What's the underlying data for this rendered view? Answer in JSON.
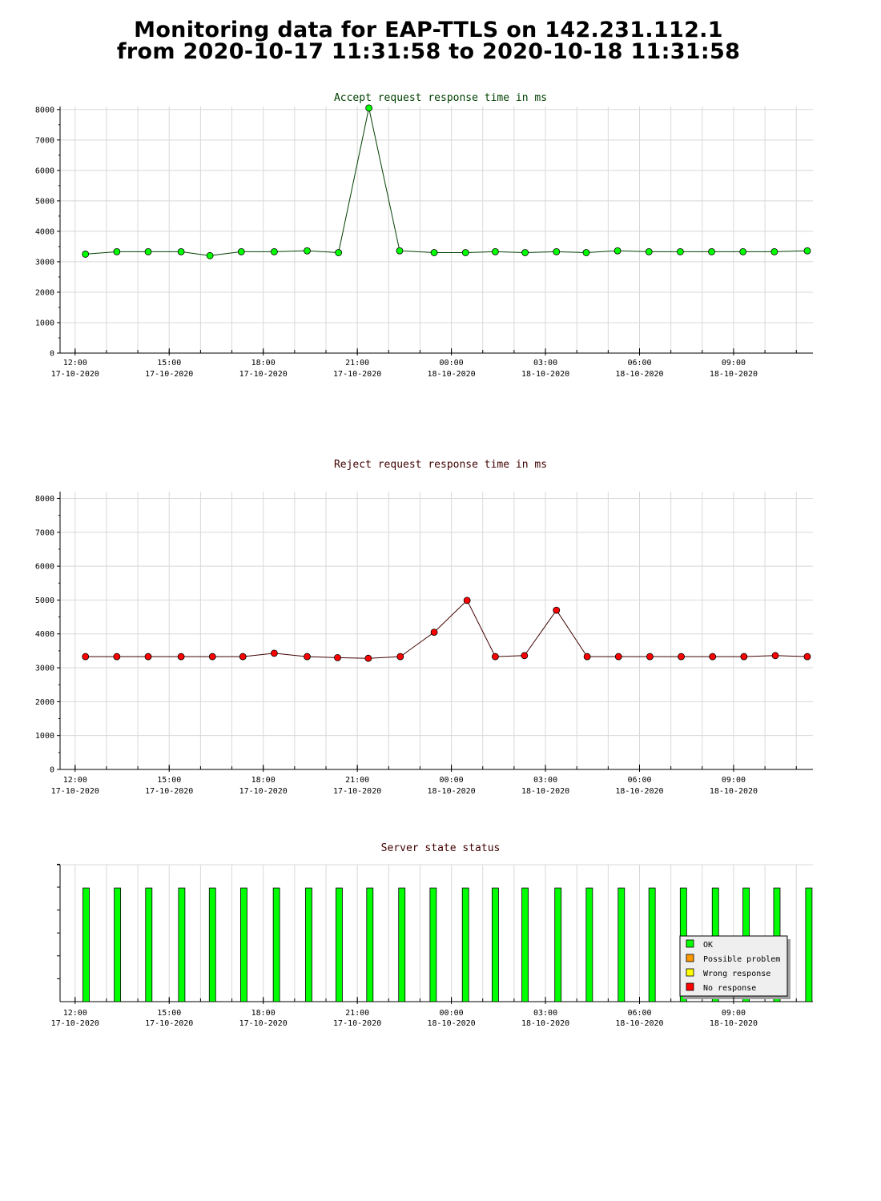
{
  "title_line1": "Monitoring data for EAP-TTLS on 142.231.112.1",
  "title_line2": "from 2020-10-17 11:31:58 to 2020-10-18 11:31:58",
  "colors": {
    "accept_line": "#004000",
    "accept_marker": "#00ff00",
    "reject_line": "#400000",
    "reject_marker": "#ff0000",
    "grid": "#d8d8d8",
    "ok": "#00ff00",
    "possible_problem": "#ff9900",
    "wrong_response": "#ffff00",
    "no_response": "#ff0000"
  },
  "chart_data": [
    {
      "type": "line",
      "title": "Accept request response time in ms",
      "ylim": [
        0,
        8000
      ],
      "yticks": [
        "0",
        "1000",
        "2000",
        "3000",
        "4000",
        "5000",
        "6000",
        "7000",
        "8000"
      ],
      "xlim": [
        11.52,
        35.53
      ],
      "x_ticks": [
        {
          "x": 12,
          "label1": "12:00",
          "label2": "17-10-2020"
        },
        {
          "x": 15,
          "label1": "15:00",
          "label2": "17-10-2020"
        },
        {
          "x": 18,
          "label1": "18:00",
          "label2": "17-10-2020"
        },
        {
          "x": 21,
          "label1": "21:00",
          "label2": "17-10-2020"
        },
        {
          "x": 24,
          "label1": "00:00",
          "label2": "18-10-2020"
        },
        {
          "x": 27,
          "label1": "03:00",
          "label2": "18-10-2020"
        },
        {
          "x": 30,
          "label1": "06:00",
          "label2": "18-10-2020"
        },
        {
          "x": 33,
          "label1": "09:00",
          "label2": "18-10-2020"
        }
      ],
      "grid": true,
      "series": [
        {
          "x": [
            12.33,
            13.33,
            14.33,
            15.38,
            16.3,
            17.3,
            18.35,
            19.4,
            20.4,
            21.37,
            22.35,
            23.45,
            24.45,
            25.4,
            26.35,
            27.35,
            28.3,
            29.3,
            30.3,
            31.3,
            32.3,
            33.3,
            34.3,
            35.35
          ],
          "values": [
            3250,
            3330,
            3330,
            3330,
            3200,
            3330,
            3330,
            3360,
            3300,
            8050,
            3360,
            3300,
            3300,
            3330,
            3300,
            3330,
            3300,
            3360,
            3330,
            3330,
            3330,
            3330,
            3330,
            3360
          ]
        }
      ]
    },
    {
      "type": "line",
      "title": "Reject request response time in ms",
      "ylim": [
        0,
        8000
      ],
      "yticks": [
        "0",
        "1000",
        "2000",
        "3000",
        "4000",
        "5000",
        "6000",
        "7000",
        "8000"
      ],
      "xlim": [
        11.52,
        35.53
      ],
      "x_ticks": [
        {
          "x": 12,
          "label1": "12:00",
          "label2": "17-10-2020"
        },
        {
          "x": 15,
          "label1": "15:00",
          "label2": "17-10-2020"
        },
        {
          "x": 18,
          "label1": "18:00",
          "label2": "17-10-2020"
        },
        {
          "x": 21,
          "label1": "21:00",
          "label2": "17-10-2020"
        },
        {
          "x": 24,
          "label1": "00:00",
          "label2": "18-10-2020"
        },
        {
          "x": 27,
          "label1": "03:00",
          "label2": "18-10-2020"
        },
        {
          "x": 30,
          "label1": "06:00",
          "label2": "18-10-2020"
        },
        {
          "x": 33,
          "label1": "09:00",
          "label2": "18-10-2020"
        }
      ],
      "grid": true,
      "series": [
        {
          "x": [
            12.33,
            13.33,
            14.33,
            15.38,
            16.38,
            17.35,
            18.35,
            19.4,
            20.37,
            21.35,
            22.37,
            23.45,
            24.5,
            25.4,
            26.33,
            27.35,
            28.33,
            29.33,
            30.33,
            31.33,
            32.33,
            33.33,
            34.33,
            35.35
          ],
          "values": [
            3330,
            3330,
            3330,
            3330,
            3330,
            3330,
            3430,
            3330,
            3300,
            3280,
            3330,
            4050,
            4990,
            3330,
            3360,
            4700,
            3330,
            3330,
            3330,
            3330,
            3330,
            3330,
            3360,
            3330
          ]
        }
      ]
    },
    {
      "type": "bar",
      "title": "Server state status",
      "xlim": [
        11.52,
        35.53
      ],
      "x_ticks": [
        {
          "x": 12,
          "label1": "12:00",
          "label2": "17-10-2020"
        },
        {
          "x": 15,
          "label1": "15:00",
          "label2": "17-10-2020"
        },
        {
          "x": 18,
          "label1": "18:00",
          "label2": "17-10-2020"
        },
        {
          "x": 21,
          "label1": "21:00",
          "label2": "17-10-2020"
        },
        {
          "x": 24,
          "label1": "00:00",
          "label2": "18-10-2020"
        },
        {
          "x": 27,
          "label1": "03:00",
          "label2": "18-10-2020"
        },
        {
          "x": 30,
          "label1": "06:00",
          "label2": "18-10-2020"
        },
        {
          "x": 33,
          "label1": "09:00",
          "label2": "18-10-2020"
        }
      ],
      "grid": true,
      "legend_position": "bottom-right",
      "legend": [
        {
          "label": "OK",
          "color_key": "ok"
        },
        {
          "label": "Possible problem",
          "color_key": "possible_problem"
        },
        {
          "label": "Wrong response",
          "color_key": "wrong_response"
        },
        {
          "label": "No response",
          "color_key": "no_response"
        }
      ],
      "x": [
        12.35,
        13.35,
        14.35,
        15.4,
        16.38,
        17.38,
        18.42,
        19.45,
        20.42,
        21.4,
        22.42,
        23.42,
        24.45,
        25.4,
        26.35,
        27.4,
        28.4,
        29.42,
        30.4,
        31.4,
        32.42,
        33.4,
        34.38,
        35.4
      ],
      "states": [
        "OK",
        "OK",
        "OK",
        "OK",
        "OK",
        "OK",
        "OK",
        "OK",
        "OK",
        "OK",
        "OK",
        "OK",
        "OK",
        "OK",
        "OK",
        "OK",
        "OK",
        "OK",
        "OK",
        "OK",
        "OK",
        "OK",
        "OK",
        "OK"
      ],
      "level": 0.83
    }
  ]
}
